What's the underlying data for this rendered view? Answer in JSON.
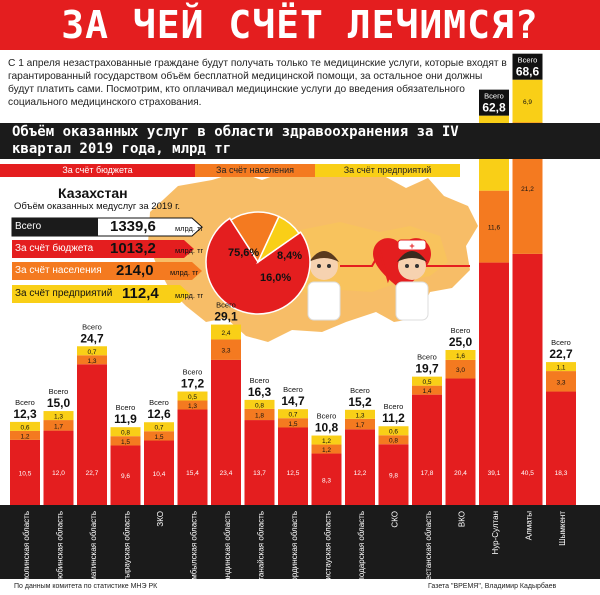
{
  "title": "ЗА ЧЕЙ СЧЁТ ЛЕЧИМСЯ?",
  "intro": "С  1 апреля незастрахованные граждане будут получать только те медицинские услуги, которые входят в гарантированный государством объём  бесплатной медицинской помощи, за остальное они должны будут платить сами.  Посмотрим, кто оплачивал медицинские услуги до введения обязательного  социального медицинского страхования.",
  "subheading": "Объём оказанных услуг в области здравоохранения за IV квартал 2019 года, млрд тг",
  "legend": {
    "budget": "За счёт бюджета",
    "population": "За счёт населения",
    "enterprises": "За счёт предприятий"
  },
  "colors": {
    "budget": "#e41e1f",
    "population": "#f47a20",
    "enterprises": "#f9cf17",
    "dark": "#1b1b1b"
  },
  "kazakhstan": {
    "name": "Казахстан",
    "subtitle": "Объём оказанных медуслуг за 2019 г.",
    "unit": "млрд. тг",
    "rows": [
      {
        "label": "Всего",
        "value": "1339,6"
      },
      {
        "label": "За счёт бюджета",
        "value": "1013,2"
      },
      {
        "label": "За счёт населения",
        "value": "214,0"
      },
      {
        "label": "За счёт предприятий",
        "value": "112,4"
      }
    ],
    "pie": [
      {
        "label": "75,6%",
        "share": 75.6
      },
      {
        "label": "16,0%",
        "share": 16.0
      },
      {
        "label": "8,4%",
        "share": 8.4
      }
    ]
  },
  "chart_data": {
    "type": "bar",
    "stacked": true,
    "total_label": "Всего",
    "ylim": [
      0,
      70
    ],
    "categories": [
      "Акмолинская область",
      "Актюбинская область",
      "Алматинская область",
      "Атырауская область",
      "ЗКО",
      "Жамбылская область",
      "Карагандинская область",
      "Костанайская область",
      "Кызылординская область",
      "Мангистауская область",
      "Павлодарская область",
      "СКО",
      "Туркестанская область",
      "ВКО",
      "Нур-Султан",
      "Алматы",
      "Шымкент"
    ],
    "totals": [
      "12,3",
      "15,0",
      "24,7",
      "11,9",
      "12,6",
      "17,2",
      "29,1",
      "16,3",
      "14,7",
      "10,8",
      "15,2",
      "11,2",
      "19,7",
      "25,0",
      "62,8",
      "68,6",
      "22,7"
    ],
    "series": [
      {
        "key": "budget",
        "values": [
          10.5,
          12.0,
          22.7,
          9.6,
          10.4,
          15.4,
          23.4,
          13.7,
          12.5,
          8.3,
          12.2,
          9.8,
          17.8,
          20.4,
          39.1,
          40.5,
          18.3
        ],
        "labels": [
          "10,5",
          "12,0",
          "22,7",
          "9,6",
          "10,4",
          "15,4",
          "23,4",
          "13,7",
          "12,5",
          "8,3",
          "12,2",
          "9,8",
          "17,8",
          "20,4",
          "39,1",
          "40,5",
          "18,3"
        ]
      },
      {
        "key": "population",
        "values": [
          1.2,
          1.7,
          1.3,
          1.5,
          1.5,
          1.3,
          3.3,
          1.8,
          1.5,
          1.2,
          1.7,
          0.8,
          1.4,
          3.0,
          11.6,
          21.2,
          3.3
        ],
        "labels": [
          "1,2",
          "1,7",
          "1,3",
          "1,5",
          "1,5",
          "1,3",
          "3,3",
          "1,8",
          "1,5",
          "1,2",
          "1,7",
          "0,8",
          "1,4",
          "3,0",
          "11,6",
          "21,2",
          "3,3"
        ]
      },
      {
        "key": "enterprises",
        "values": [
          0.6,
          1.3,
          0.7,
          0.8,
          0.7,
          0.5,
          2.4,
          0.8,
          0.7,
          1.2,
          1.3,
          0.6,
          0.5,
          1.6,
          12.1,
          6.9,
          1.1
        ],
        "labels": [
          "0,6",
          "1,3",
          "0,7",
          "0,8",
          "0,7",
          "0,5",
          "2,4",
          "0,8",
          "0,7",
          "1,2",
          "1,3",
          "0,6",
          "0,5",
          "1,6",
          "12,1",
          "6,9",
          "1,1"
        ]
      }
    ],
    "extra_small_labels": {
      "0": "0,6",
      "1": "1,3",
      "2": "0,8",
      "3": "0,8",
      "4": "0,7",
      "5": "0,5",
      "7": "0,8",
      "8": "0,7",
      "9": "0,7",
      "10": "0,8",
      "11": "0,7",
      "12": "0,5"
    }
  },
  "footer": {
    "source": "По данным комитета по статистике МНЭ РК",
    "credit": "Газета \"ВРЕМЯ\", Владимир Кадырбаев"
  }
}
